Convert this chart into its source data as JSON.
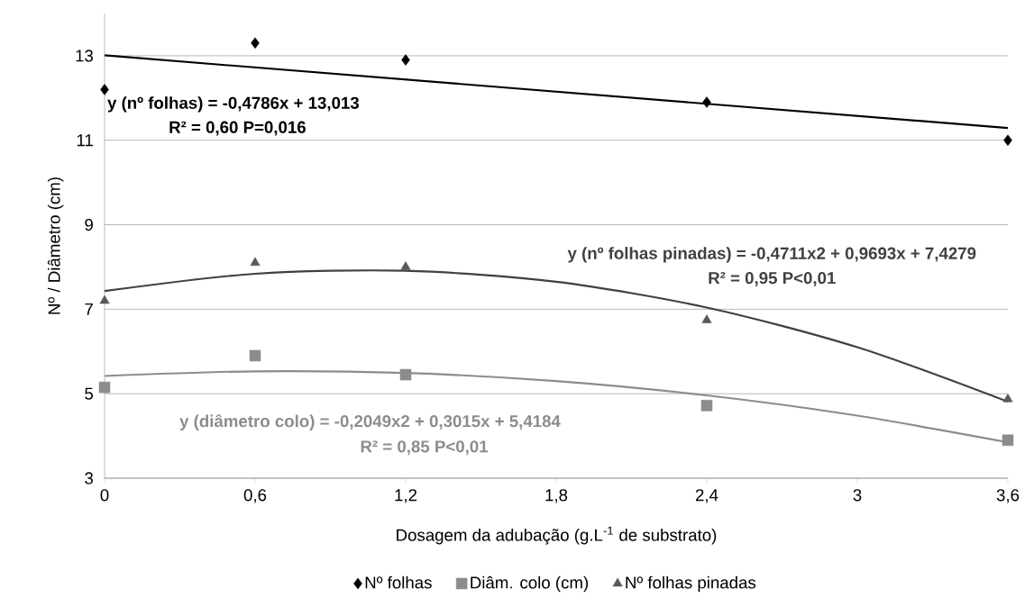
{
  "chart_data": {
    "type": "scatter",
    "xlabel": "Dosagem da adubação (g.L$^{-1}$ de substrato)",
    "ylabel": "Nº / Diâmetro (cm)",
    "x": [
      0,
      0.6,
      1.2,
      2.4,
      3.6
    ],
    "series": [
      {
        "name": "Nº folhas",
        "color": "#000000",
        "marker": "diamond",
        "values": [
          12.2,
          13.3,
          12.9,
          11.9,
          11.0
        ]
      },
      {
        "name": "Diâm. colo (cm)",
        "color": "#8c8c8c",
        "marker": "square",
        "values": [
          5.15,
          5.9,
          5.45,
          4.72,
          3.9
        ]
      },
      {
        "name": "Nº folhas pinadas",
        "color": "#595959",
        "marker": "triangle",
        "values": [
          7.2,
          8.1,
          8.0,
          6.74,
          4.87
        ]
      },
      {
        "type": "line",
        "color": "#000000",
        "marker": "none",
        "x": [
          0,
          3.6
        ],
        "values": [
          13.01,
          11.29
        ]
      },
      {
        "type": "line",
        "color": "#8c8c8c",
        "marker": "none",
        "x": [
          0,
          0.6,
          1.2,
          1.8,
          2.4,
          3.0,
          3.6
        ],
        "values": [
          5.42,
          5.53,
          5.49,
          5.3,
          4.96,
          4.48,
          3.85
        ]
      },
      {
        "type": "line",
        "color": "#404040",
        "marker": "none",
        "x": [
          0,
          0.6,
          1.2,
          1.8,
          2.4,
          3.0,
          3.6
        ],
        "values": [
          7.43,
          7.84,
          7.91,
          7.65,
          7.04,
          6.1,
          4.81
        ]
      }
    ],
    "xlim": [
      0,
      3.6
    ],
    "ylim": [
      3,
      14
    ],
    "xticks": [
      0,
      {
        "value": 0.6,
        "label": "0,6"
      },
      {
        "value": 1.2,
        "label": "1,2"
      },
      {
        "value": 1.8,
        "label": "1,8"
      },
      {
        "value": 2.4,
        "label": "2,4"
      },
      3,
      {
        "value": 3.6,
        "label": "3,6"
      }
    ],
    "yticks": [
      3,
      5,
      7,
      9,
      11,
      13
    ],
    "grid": "y",
    "legend": "bottom",
    "annotations": [
      "y (nº folhas) = -0,4786x + 13,013",
      "R² = 0,60  P=0,016",
      "y (nº folhas pinadas) = -0,4711x2 + 0,9693x + 7,4279",
      "R² = 0,95  P<0,01",
      "y  (diâmetro colo) = -0,2049x2 + 0,3015x + 5,4184",
      "R² = 0,85   P<0,01"
    ]
  }
}
